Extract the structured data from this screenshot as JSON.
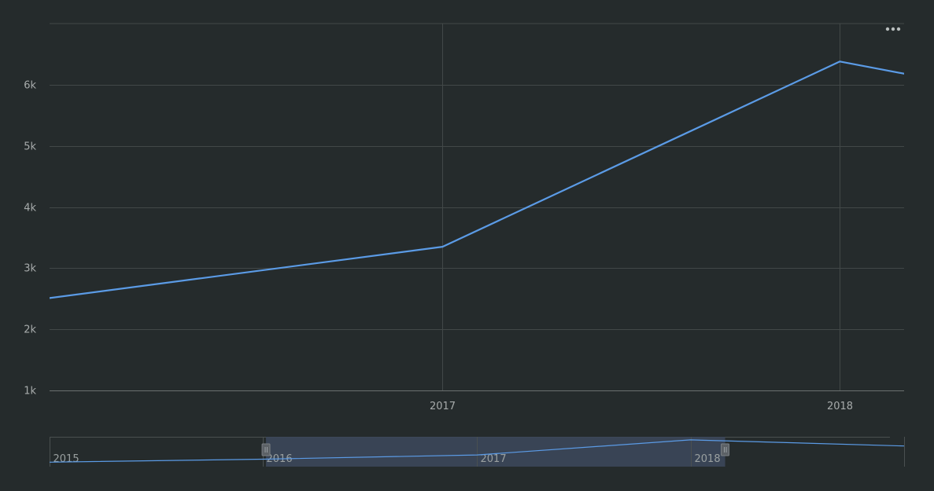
{
  "chart_data": {
    "type": "line",
    "title": "",
    "xlabel": "",
    "ylabel": "",
    "x": [
      "2015-01-01",
      "2016-01-01",
      "2017-01-01",
      "2018-01-01",
      "2019-01-01"
    ],
    "series": [
      {
        "values": [
          1900,
          2500,
          3350,
          6380,
          5150
        ]
      }
    ],
    "main_view": {
      "x_range": [
        "2016-01-06",
        "2018-03-01"
      ],
      "y_range": [
        1000,
        7000
      ],
      "y_ticks": [
        1000,
        2000,
        3000,
        4000,
        5000,
        6000
      ],
      "y_tick_labels": [
        "1k",
        "2k",
        "3k",
        "4k",
        "5k",
        "6k"
      ],
      "x_ticks": [
        "2017-01-01",
        "2018-01-01"
      ],
      "x_tick_labels": [
        "2017",
        "2018"
      ]
    },
    "navigator": {
      "x_range": [
        "2015-01-01",
        "2019-01-01"
      ],
      "labels": [
        "2015",
        "2016",
        "2017",
        "2018"
      ],
      "label_dates": [
        "2015-01-01",
        "2016-01-01",
        "2017-01-01",
        "2018-01-01"
      ],
      "selection": [
        "2016-01-06",
        "2018-03-01"
      ]
    },
    "grid": true,
    "legend": "none",
    "colors": {
      "background": "#252b2c",
      "line": "#5b9be6",
      "grid": "#424848",
      "axis": "#6b7070",
      "navigator_selection": "#3c475a",
      "navigator_line": "#5b9be6"
    }
  },
  "menu": {
    "icon": "more-dots-icon"
  }
}
